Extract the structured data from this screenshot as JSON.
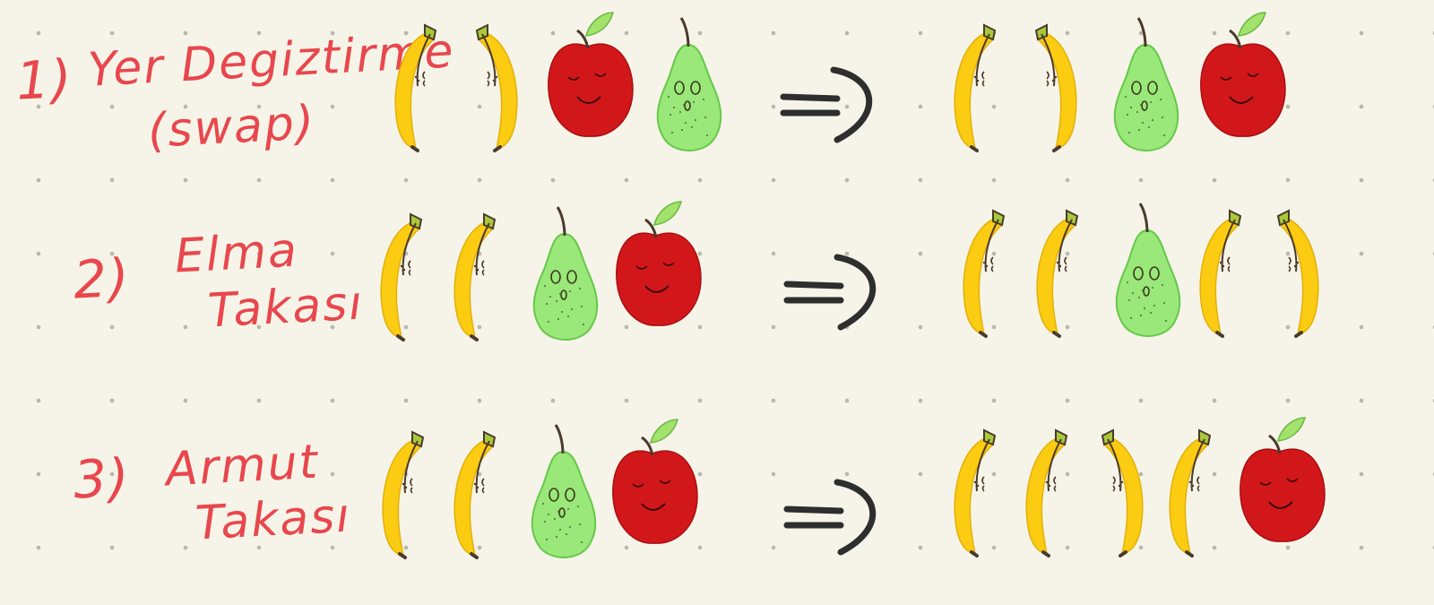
{
  "colors": {
    "background": "#f6f4e8",
    "label_text": "#e8474d",
    "banana": "#fccc12",
    "apple": "#d2171b",
    "pear": "#9ae77a",
    "leaf": "#a3e26b",
    "stem": "#4a3a2c",
    "arrow": "#2e2e2e"
  },
  "rows": [
    {
      "number": "1)",
      "title_line1": "Yer Degiztirme",
      "title_line2": "(swap)",
      "before": [
        "banana",
        "banana-mirrored",
        "apple",
        "pear"
      ],
      "arrow": "double-arrow-icon",
      "after": [
        "banana",
        "banana-mirrored",
        "pear",
        "apple"
      ]
    },
    {
      "number": "2)",
      "title_line1": "Elma",
      "title_line2": "Takası",
      "before": [
        "banana",
        "banana",
        "pear",
        "apple"
      ],
      "arrow": "double-arrow-icon",
      "after": [
        "banana",
        "banana",
        "pear",
        "banana",
        "banana-mirrored"
      ]
    },
    {
      "number": "3)",
      "title_line1": "Armut",
      "title_line2": "Takası",
      "before": [
        "banana",
        "banana",
        "pear",
        "apple"
      ],
      "arrow": "double-arrow-icon",
      "after": [
        "banana",
        "banana",
        "banana-mirrored",
        "banana",
        "apple"
      ]
    }
  ]
}
